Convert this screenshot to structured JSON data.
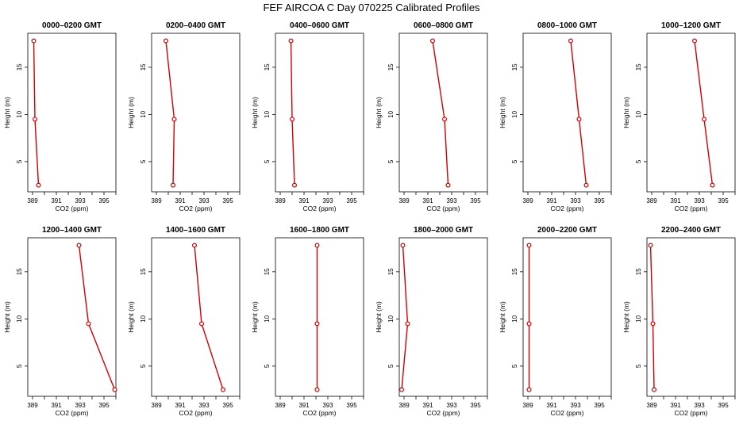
{
  "figure_title": "FEF AIRCOA C  Day 070225  Calibrated Profiles",
  "colors": {
    "line": "#d40000",
    "axis": "#000000",
    "background": "#ffffff"
  },
  "chart_data": [
    {
      "type": "line",
      "title": "0000–0200 GMT",
      "xlabel": "CO2 (ppm)",
      "ylabel": "Height (m)",
      "xlim": [
        388.6,
        396
      ],
      "ylim": [
        1.8,
        18.6
      ],
      "xticks": [
        "389",
        "391",
        "393",
        "395"
      ],
      "yticks": [
        "5",
        "10",
        "15"
      ],
      "series": [
        {
          "x": [
            389.1,
            389.2,
            389.5
          ],
          "y": [
            17.8,
            9.5,
            2.5
          ]
        }
      ]
    },
    {
      "type": "line",
      "title": "0200–0400 GMT",
      "xlabel": "CO2 (ppm)",
      "ylabel": "Height (m)",
      "xlim": [
        388.6,
        396
      ],
      "ylim": [
        1.8,
        18.6
      ],
      "xticks": [
        "389",
        "391",
        "393",
        "395"
      ],
      "yticks": [
        "5",
        "10",
        "15"
      ],
      "series": [
        {
          "x": [
            389.8,
            390.5,
            390.4
          ],
          "y": [
            17.8,
            9.5,
            2.5
          ]
        }
      ]
    },
    {
      "type": "line",
      "title": "0400–0600 GMT",
      "xlabel": "CO2 (ppm)",
      "ylabel": "Height (m)",
      "xlim": [
        388.6,
        396
      ],
      "ylim": [
        1.8,
        18.6
      ],
      "xticks": [
        "389",
        "391",
        "393",
        "395"
      ],
      "yticks": [
        "5",
        "10",
        "15"
      ],
      "series": [
        {
          "x": [
            389.9,
            390.0,
            390.2
          ],
          "y": [
            17.8,
            9.5,
            2.5
          ]
        }
      ]
    },
    {
      "type": "line",
      "title": "0600–0800 GMT",
      "xlabel": "CO2 (ppm)",
      "ylabel": "Height (m)",
      "xlim": [
        388.6,
        396
      ],
      "ylim": [
        1.8,
        18.6
      ],
      "xticks": [
        "389",
        "391",
        "393",
        "395"
      ],
      "yticks": [
        "5",
        "10",
        "15"
      ],
      "series": [
        {
          "x": [
            391.4,
            392.4,
            392.7
          ],
          "y": [
            17.8,
            9.5,
            2.5
          ]
        }
      ]
    },
    {
      "type": "line",
      "title": "0800–1000 GMT",
      "xlabel": "CO2 (ppm)",
      "ylabel": "Height (m)",
      "xlim": [
        388.6,
        396
      ],
      "ylim": [
        1.8,
        18.6
      ],
      "xticks": [
        "389",
        "391",
        "393",
        "395"
      ],
      "yticks": [
        "5",
        "10",
        "15"
      ],
      "series": [
        {
          "x": [
            392.6,
            393.3,
            393.9
          ],
          "y": [
            17.8,
            9.5,
            2.5
          ]
        }
      ]
    },
    {
      "type": "line",
      "title": "1000–1200 GMT",
      "xlabel": "CO2 (ppm)",
      "ylabel": "Height (m)",
      "xlim": [
        388.6,
        396
      ],
      "ylim": [
        1.8,
        18.6
      ],
      "xticks": [
        "389",
        "391",
        "393",
        "395"
      ],
      "yticks": [
        "5",
        "10",
        "15"
      ],
      "series": [
        {
          "x": [
            392.6,
            393.4,
            394.1
          ],
          "y": [
            17.8,
            9.5,
            2.5
          ]
        }
      ]
    },
    {
      "type": "line",
      "title": "1200–1400 GMT",
      "xlabel": "CO2 (ppm)",
      "ylabel": "Height (m)",
      "xlim": [
        388.6,
        396
      ],
      "ylim": [
        1.8,
        18.6
      ],
      "xticks": [
        "389",
        "391",
        "393",
        "395"
      ],
      "yticks": [
        "5",
        "10",
        "15"
      ],
      "series": [
        {
          "x": [
            392.9,
            393.7,
            395.9
          ],
          "y": [
            17.8,
            9.5,
            2.5
          ]
        }
      ]
    },
    {
      "type": "line",
      "title": "1400–1600 GMT",
      "xlabel": "CO2 (ppm)",
      "ylabel": "Height (m)",
      "xlim": [
        388.6,
        396
      ],
      "ylim": [
        1.8,
        18.6
      ],
      "xticks": [
        "389",
        "391",
        "393",
        "395"
      ],
      "yticks": [
        "5",
        "10",
        "15"
      ],
      "series": [
        {
          "x": [
            392.2,
            392.8,
            394.6
          ],
          "y": [
            17.8,
            9.5,
            2.5
          ]
        }
      ]
    },
    {
      "type": "line",
      "title": "1600–1800 GMT",
      "xlabel": "CO2 (ppm)",
      "ylabel": "Height (m)",
      "xlim": [
        388.6,
        396
      ],
      "ylim": [
        1.8,
        18.6
      ],
      "xticks": [
        "389",
        "391",
        "393",
        "395"
      ],
      "yticks": [
        "5",
        "10",
        "15"
      ],
      "series": [
        {
          "x": [
            392.1,
            392.1,
            392.1
          ],
          "y": [
            17.8,
            9.5,
            2.5
          ]
        }
      ]
    },
    {
      "type": "line",
      "title": "1800–2000 GMT",
      "xlabel": "CO2 (ppm)",
      "ylabel": "Height (m)",
      "xlim": [
        388.6,
        396
      ],
      "ylim": [
        1.8,
        18.6
      ],
      "xticks": [
        "389",
        "391",
        "393",
        "395"
      ],
      "yticks": [
        "5",
        "10",
        "15"
      ],
      "series": [
        {
          "x": [
            388.9,
            389.3,
            388.8
          ],
          "y": [
            17.8,
            9.5,
            2.5
          ]
        }
      ]
    },
    {
      "type": "line",
      "title": "2000–2200 GMT",
      "xlabel": "CO2 (ppm)",
      "ylabel": "Height (m)",
      "xlim": [
        388.6,
        396
      ],
      "ylim": [
        1.8,
        18.6
      ],
      "xticks": [
        "389",
        "391",
        "393",
        "395"
      ],
      "yticks": [
        "5",
        "10",
        "15"
      ],
      "series": [
        {
          "x": [
            389.1,
            389.1,
            389.1
          ],
          "y": [
            17.8,
            9.5,
            2.5
          ]
        }
      ]
    },
    {
      "type": "line",
      "title": "2200–2400 GMT",
      "xlabel": "CO2 (ppm)",
      "ylabel": "Height (m)",
      "xlim": [
        388.6,
        396
      ],
      "ylim": [
        1.8,
        18.6
      ],
      "xticks": [
        "389",
        "391",
        "393",
        "395"
      ],
      "yticks": [
        "5",
        "10",
        "15"
      ],
      "series": [
        {
          "x": [
            388.9,
            389.1,
            389.2
          ],
          "y": [
            17.8,
            9.5,
            2.5
          ]
        }
      ]
    }
  ]
}
